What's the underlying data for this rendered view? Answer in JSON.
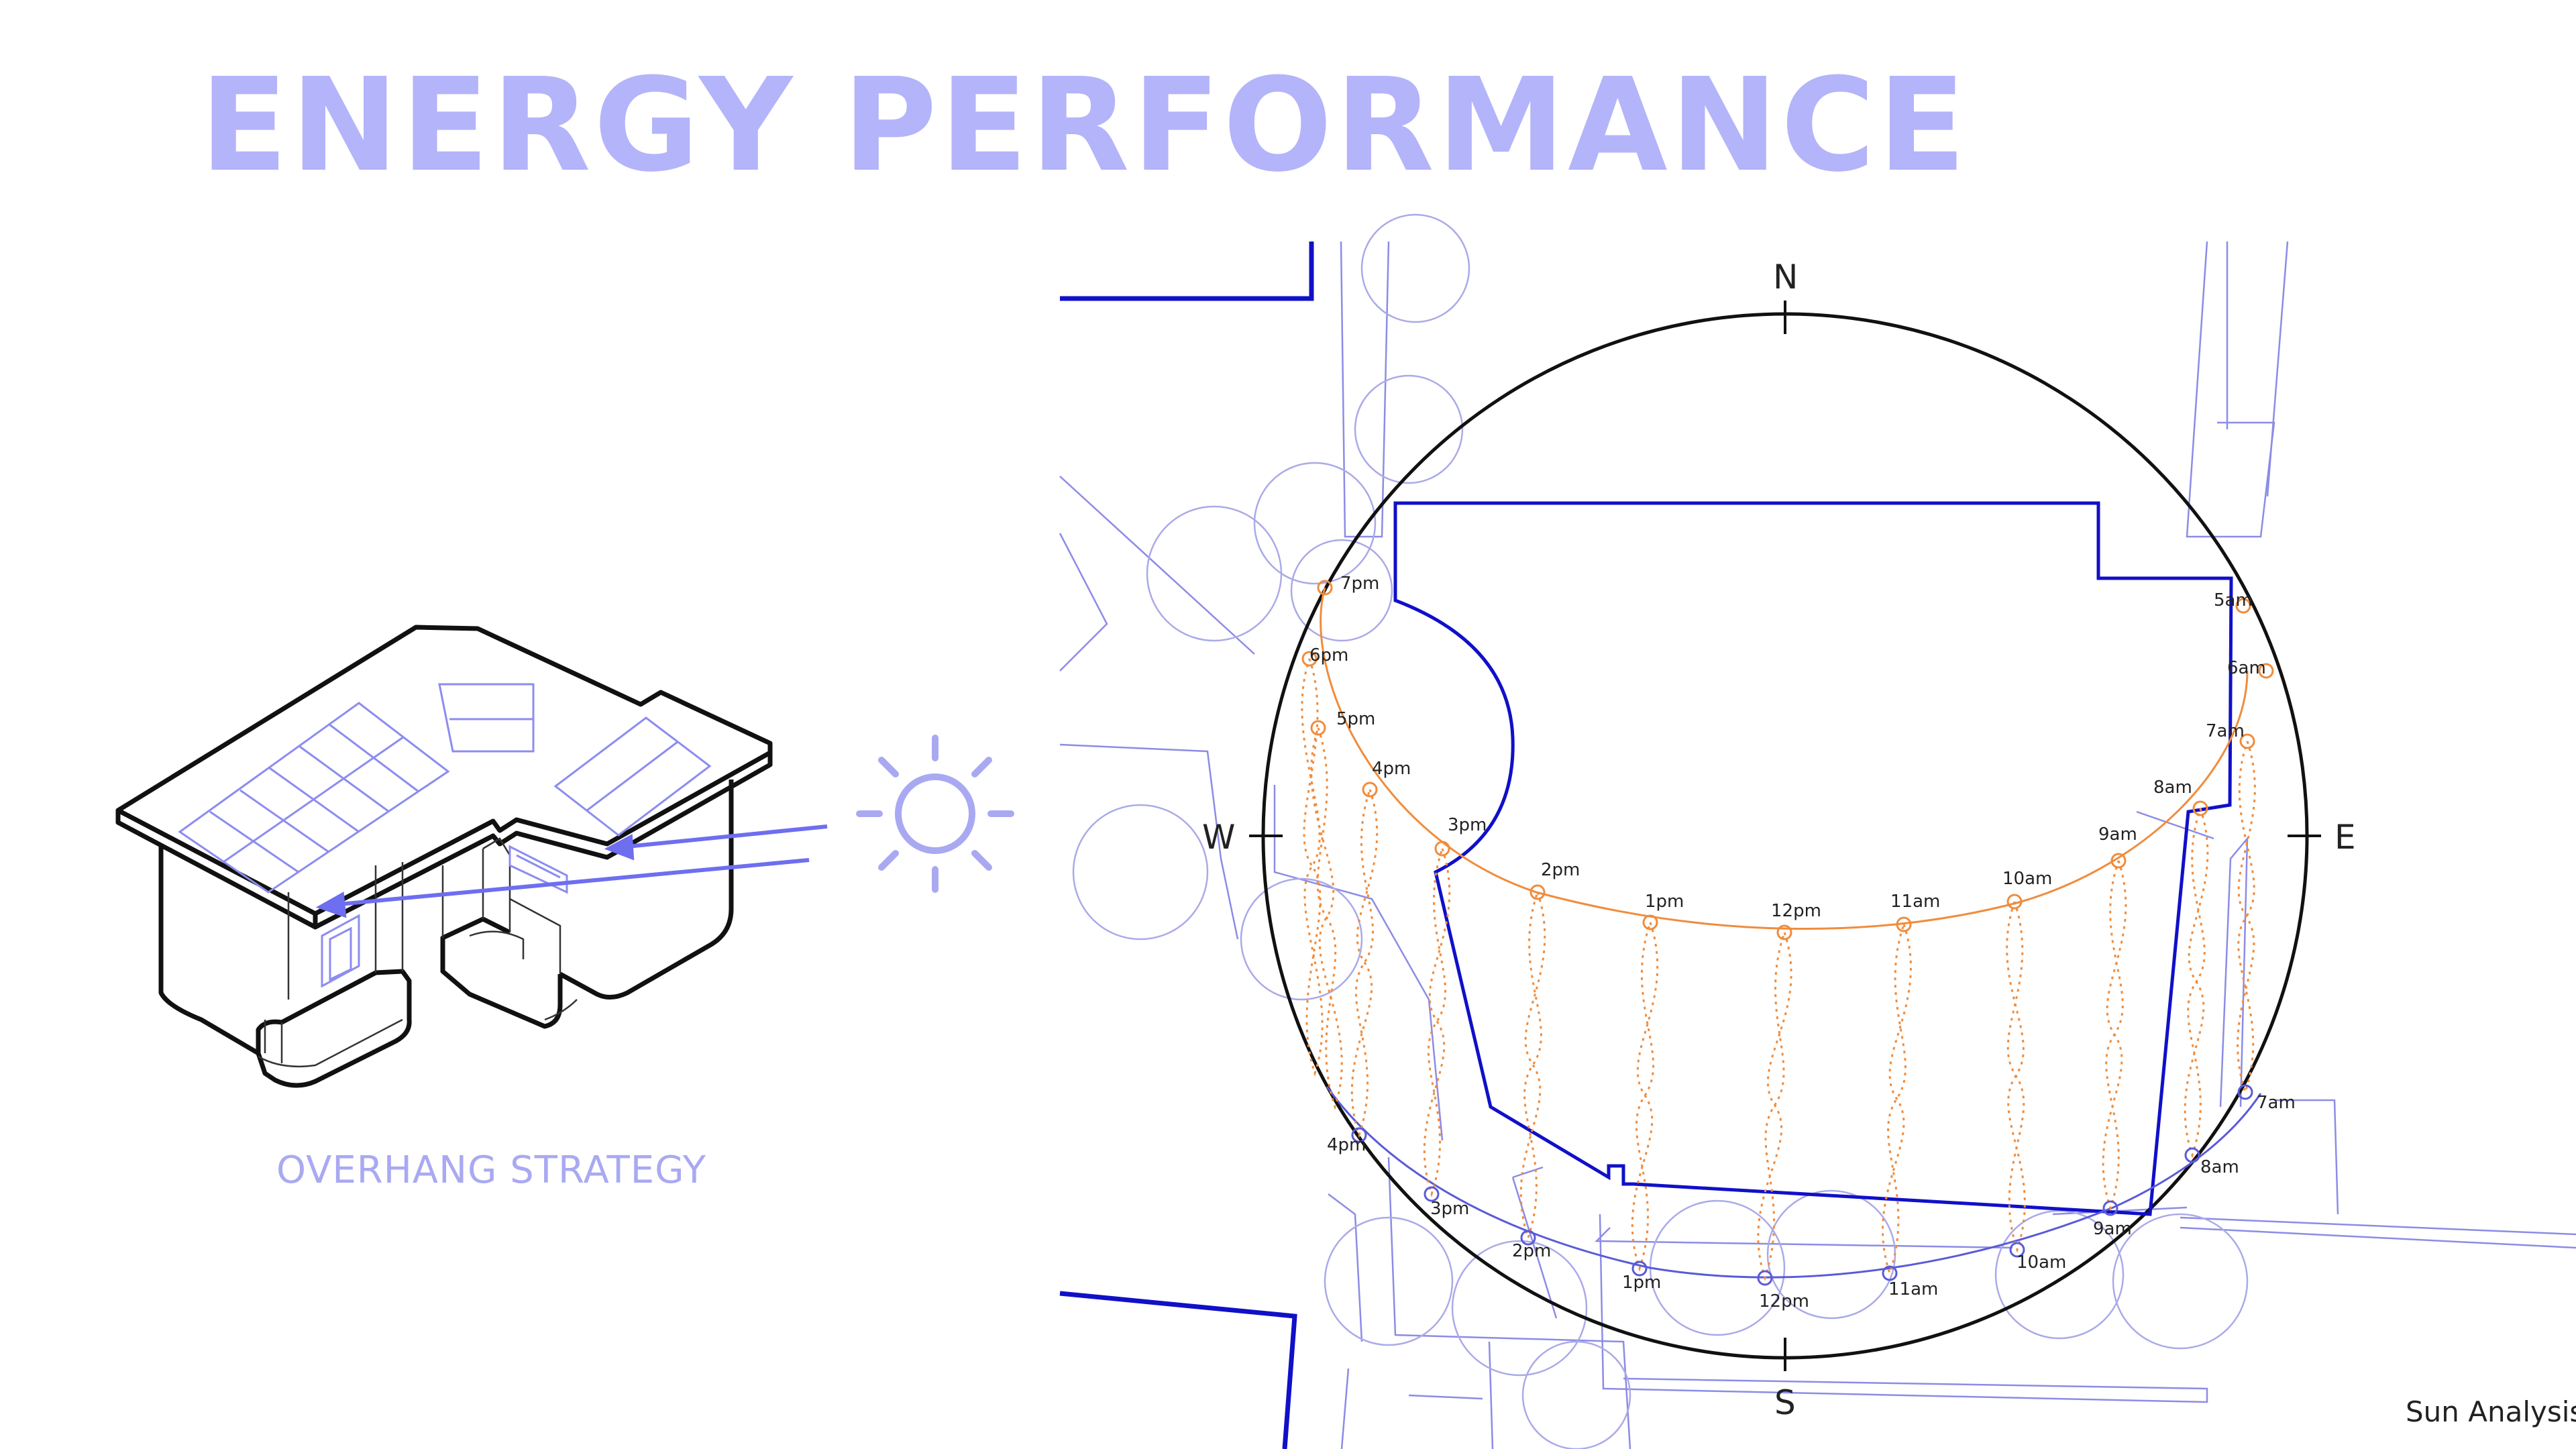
{
  "title": "ENERGY PERFORMANCE",
  "left_panel": {
    "caption": "OVERHANG STRATEGY"
  },
  "right_panel": {
    "caption": "Sun Analysis",
    "compass": {
      "north": "N",
      "south": "S",
      "east": "E",
      "west": "W"
    },
    "summer_path_labels": [
      "5am",
      "6am",
      "7am",
      "8am",
      "9am",
      "10am",
      "11am",
      "12pm",
      "1pm",
      "2pm",
      "3pm",
      "4pm",
      "5pm",
      "6pm",
      "7pm"
    ],
    "winter_path_labels": [
      "7am",
      "8am",
      "9am",
      "10am",
      "11am",
      "12pm",
      "1pm",
      "2pm",
      "3pm",
      "4pm"
    ]
  },
  "colors": {
    "title": "#b4b4fa",
    "plan_lines": "#8c8ce6",
    "building_outline": "#1010c8",
    "summer_path": "#f08c3c",
    "winter_path": "#5a5ad8",
    "house_outline": "#111111",
    "sun_icon": "#a9a9f2",
    "arrows": "#6e6ef0"
  }
}
